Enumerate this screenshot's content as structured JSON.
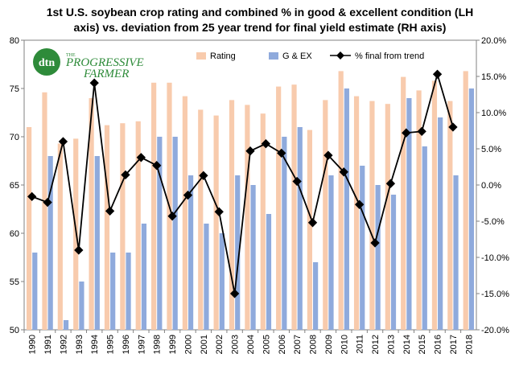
{
  "chart_data": {
    "type": "bar",
    "title_lines": [
      "1st U.S. soybean crop rating and combined % in good & excellent condition (LH",
      "axis) vs. deviation from 25 year trend for final yield estimate (RH axis)"
    ],
    "categories": [
      "1990",
      "1991",
      "1992",
      "1993",
      "1994",
      "1995",
      "1996",
      "1997",
      "1998",
      "1999",
      "2000",
      "2001",
      "2002",
      "2003",
      "2004",
      "2005",
      "2006",
      "2007",
      "2008",
      "2009",
      "2010",
      "2011",
      "2012",
      "2013",
      "2014",
      "2015",
      "2016",
      "2017",
      "2018"
    ],
    "left_axis": {
      "min": 50,
      "max": 80,
      "step": 5,
      "ticks": [
        "50",
        "55",
        "60",
        "65",
        "70",
        "75",
        "80"
      ]
    },
    "right_axis": {
      "min": -20,
      "max": 20,
      "step": 5,
      "ticks": [
        "-20.0%",
        "-15.0%",
        "-10.0%",
        "-5.0%",
        "0.0%",
        "5.0%",
        "10.0%",
        "15.0%",
        "20.0%"
      ]
    },
    "series": [
      {
        "name": "Rating",
        "kind": "bar",
        "axis": "left",
        "color": "#f8cbad",
        "values": [
          71.0,
          74.6,
          69.3,
          69.8,
          74.0,
          71.2,
          71.4,
          71.6,
          75.6,
          75.6,
          74.2,
          72.8,
          72.2,
          73.8,
          73.3,
          72.4,
          75.2,
          75.4,
          70.7,
          73.8,
          76.8,
          74.2,
          73.7,
          73.4,
          76.2,
          74.8,
          75.8,
          73.7,
          76.8
        ]
      },
      {
        "name": "G & EX",
        "kind": "bar",
        "axis": "left",
        "color": "#8faadc",
        "values": [
          58,
          68,
          51,
          55,
          68,
          58,
          58,
          61,
          70,
          70,
          66,
          61,
          60,
          66,
          65,
          62,
          70,
          71,
          57,
          66,
          75,
          67,
          65,
          64,
          74,
          69,
          72,
          66,
          75
        ]
      },
      {
        "name": "% final from trend",
        "kind": "line",
        "axis": "right",
        "color": "#000000",
        "values": [
          -1.6,
          -2.4,
          6.0,
          -9.0,
          14.1,
          -3.6,
          1.4,
          3.8,
          2.7,
          -4.3,
          -1.4,
          1.3,
          -3.7,
          -15.0,
          4.7,
          5.7,
          4.4,
          0.5,
          -5.2,
          4.1,
          1.8,
          -2.7,
          -8.0,
          0.2,
          7.2,
          7.4,
          15.3,
          8.0,
          null
        ]
      }
    ],
    "legend_position": "top-right",
    "grid": false
  },
  "logo": {
    "badge": "dtn",
    "small": "THE",
    "line1": "PROGRESSIVE",
    "line2": "FARMER"
  }
}
